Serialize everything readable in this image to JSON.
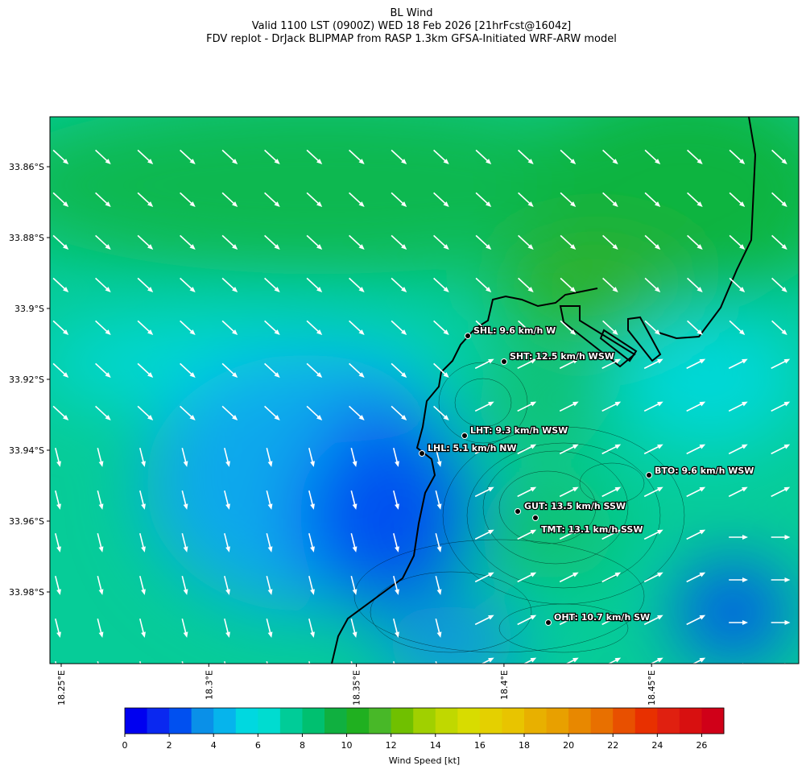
{
  "header": {
    "title": [
      "BL Wind",
      "Valid 1100 LST (0900Z) WED 18 Feb 2026 [21hrFcst@1604z]",
      "FDV replot - DrJack BLIPMAP from RASP 1.3km GFSA-Initiated WRF-ARW model"
    ]
  },
  "axes": {
    "lat_labels": [
      "33.86°S",
      "33.88°S",
      "33.9°S",
      "33.92°S",
      "33.94°S",
      "33.96°S",
      "33.98°S"
    ],
    "lon_labels": [
      "18.25°E",
      "18.3°E",
      "18.35°E",
      "18.4°E",
      "18.45°E"
    ]
  },
  "stations": [
    "SHL: 9.6 km/h W",
    "SHT: 12.5 km/h WSW",
    "LHT: 9.3 km/h WSW",
    "LHL: 5.1 km/h NW",
    "BTO: 9.6 km/h WSW",
    "GUT: 13.5 km/h SSW",
    "TMT: 13.1 km/h SSW",
    "OHT: 10.7 km/h SW"
  ],
  "colorbar": {
    "label": "Wind Speed [kt]",
    "range": [
      0,
      27
    ],
    "ticks": [
      0,
      2,
      4,
      6,
      8,
      10,
      12,
      14,
      16,
      18,
      20,
      22,
      24,
      26
    ],
    "colors": [
      "#0000f0",
      "#0a28f0",
      "#0050f0",
      "#0a90e8",
      "#06b4ec",
      "#00d8e0",
      "#00dcd0",
      "#00cc98",
      "#00c070",
      "#10b040",
      "#20b020",
      "#48b828",
      "#70c000",
      "#a0d000",
      "#c0d800",
      "#d8dc00",
      "#e4d000",
      "#e8c400",
      "#e8b000",
      "#e8a000",
      "#e88800",
      "#e87000",
      "#e85000",
      "#e83000",
      "#e02010",
      "#d81010",
      "#d00018"
    ]
  }
}
